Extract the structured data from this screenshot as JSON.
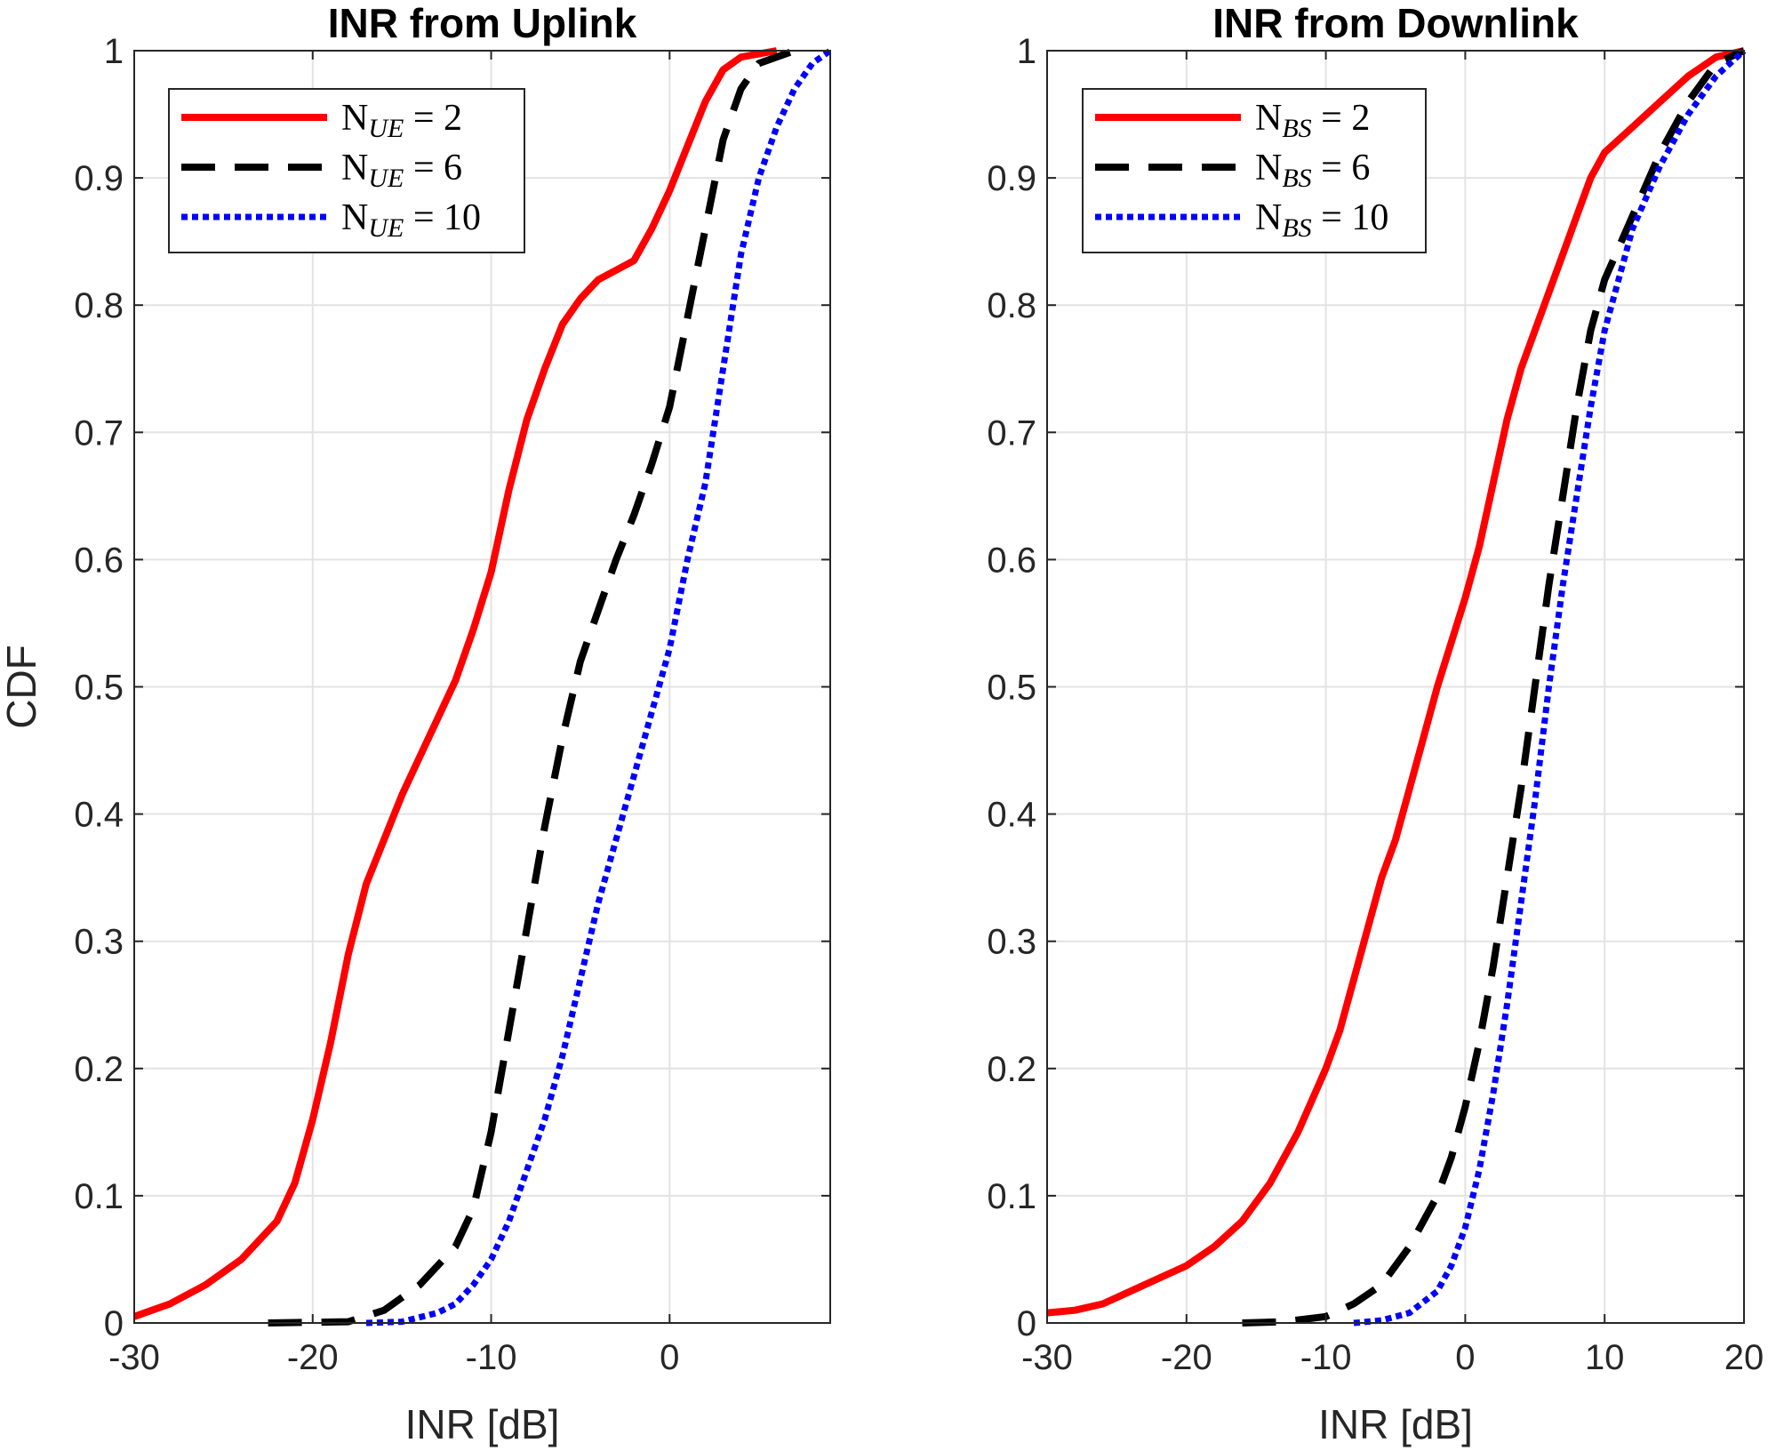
{
  "chart_data": [
    {
      "type": "line",
      "title": "INR from Uplink",
      "xlabel": "INR [dB]",
      "ylabel": "CDF",
      "xlim": [
        -30,
        9
      ],
      "ylim": [
        0,
        1
      ],
      "xticks": [
        -30,
        -20,
        -10,
        0
      ],
      "yticks": [
        0,
        0.1,
        0.2,
        0.3,
        0.4,
        0.5,
        0.6,
        0.7,
        0.8,
        0.9,
        1
      ],
      "grid": true,
      "legend_position": "top-left",
      "series": [
        {
          "name": "N_UE = 2",
          "legend_base": "N",
          "legend_sub": "UE",
          "legend_rest": " = 2",
          "color": "#ff0000",
          "style": "solid",
          "points": [
            [
              -30,
              0.005
            ],
            [
              -28,
              0.015
            ],
            [
              -26,
              0.03
            ],
            [
              -24,
              0.05
            ],
            [
              -22,
              0.08
            ],
            [
              -21,
              0.11
            ],
            [
              -20,
              0.16
            ],
            [
              -19,
              0.22
            ],
            [
              -18,
              0.29
            ],
            [
              -17,
              0.345
            ],
            [
              -16,
              0.38
            ],
            [
              -15,
              0.415
            ],
            [
              -14,
              0.445
            ],
            [
              -13,
              0.475
            ],
            [
              -12,
              0.505
            ],
            [
              -11,
              0.545
            ],
            [
              -10,
              0.59
            ],
            [
              -9,
              0.655
            ],
            [
              -8,
              0.71
            ],
            [
              -7,
              0.75
            ],
            [
              -6,
              0.785
            ],
            [
              -5,
              0.805
            ],
            [
              -4,
              0.82
            ],
            [
              -2,
              0.835
            ],
            [
              -1,
              0.86
            ],
            [
              0,
              0.89
            ],
            [
              1,
              0.925
            ],
            [
              2,
              0.96
            ],
            [
              3,
              0.985
            ],
            [
              4,
              0.995
            ],
            [
              6,
              1.0
            ]
          ]
        },
        {
          "name": "N_UE = 6",
          "legend_base": "N",
          "legend_sub": "UE",
          "legend_rest": " = 6",
          "color": "#000000",
          "style": "dashed",
          "points": [
            [
              -22.5,
              0.0
            ],
            [
              -18,
              0.001
            ],
            [
              -16,
              0.01
            ],
            [
              -14,
              0.03
            ],
            [
              -12,
              0.06
            ],
            [
              -11,
              0.09
            ],
            [
              -10,
              0.15
            ],
            [
              -9,
              0.23
            ],
            [
              -8,
              0.31
            ],
            [
              -7,
              0.39
            ],
            [
              -6,
              0.46
            ],
            [
              -5,
              0.52
            ],
            [
              -4,
              0.56
            ],
            [
              -3,
              0.6
            ],
            [
              -2,
              0.635
            ],
            [
              -1,
              0.675
            ],
            [
              0,
              0.72
            ],
            [
              1,
              0.79
            ],
            [
              2,
              0.86
            ],
            [
              3,
              0.93
            ],
            [
              4,
              0.97
            ],
            [
              5,
              0.99
            ],
            [
              7,
              1.0
            ]
          ]
        },
        {
          "name": "N_UE = 10",
          "legend_base": "N",
          "legend_sub": "UE",
          "legend_rest": " = 10",
          "color": "#0000ff",
          "style": "dotted",
          "points": [
            [
              -17,
              0.0
            ],
            [
              -15,
              0.001
            ],
            [
              -13,
              0.008
            ],
            [
              -12,
              0.015
            ],
            [
              -11,
              0.03
            ],
            [
              -10,
              0.05
            ],
            [
              -9,
              0.08
            ],
            [
              -8,
              0.12
            ],
            [
              -7,
              0.16
            ],
            [
              -6,
              0.21
            ],
            [
              -5,
              0.27
            ],
            [
              -4,
              0.33
            ],
            [
              -3,
              0.38
            ],
            [
              -2,
              0.43
            ],
            [
              -1,
              0.48
            ],
            [
              0,
              0.53
            ],
            [
              1,
              0.6
            ],
            [
              2,
              0.66
            ],
            [
              3,
              0.75
            ],
            [
              4,
              0.84
            ],
            [
              5,
              0.9
            ],
            [
              6,
              0.94
            ],
            [
              7,
              0.97
            ],
            [
              8,
              0.99
            ],
            [
              9,
              1.0
            ]
          ]
        }
      ]
    },
    {
      "type": "line",
      "title": "INR from Downlink",
      "xlabel": "INR [dB]",
      "ylabel": "",
      "xlim": [
        -30,
        20
      ],
      "ylim": [
        0,
        1
      ],
      "xticks": [
        -30,
        -20,
        -10,
        0,
        10,
        20
      ],
      "yticks": [
        0,
        0.1,
        0.2,
        0.3,
        0.4,
        0.5,
        0.6,
        0.7,
        0.8,
        0.9,
        1
      ],
      "grid": true,
      "legend_position": "top-left",
      "series": [
        {
          "name": "N_BS = 2",
          "legend_base": "N",
          "legend_sub": "BS",
          "legend_rest": " = 2",
          "color": "#ff0000",
          "style": "solid",
          "points": [
            [
              -30,
              0.008
            ],
            [
              -28,
              0.01
            ],
            [
              -26,
              0.015
            ],
            [
              -24,
              0.025
            ],
            [
              -22,
              0.035
            ],
            [
              -20,
              0.045
            ],
            [
              -18,
              0.06
            ],
            [
              -16,
              0.08
            ],
            [
              -14,
              0.11
            ],
            [
              -12,
              0.15
            ],
            [
              -10,
              0.2
            ],
            [
              -9,
              0.23
            ],
            [
              -8,
              0.27
            ],
            [
              -7,
              0.31
            ],
            [
              -6,
              0.35
            ],
            [
              -5,
              0.38
            ],
            [
              -4,
              0.42
            ],
            [
              -3,
              0.46
            ],
            [
              -2,
              0.5
            ],
            [
              -1,
              0.535
            ],
            [
              0,
              0.57
            ],
            [
              1,
              0.61
            ],
            [
              2,
              0.66
            ],
            [
              3,
              0.71
            ],
            [
              4,
              0.75
            ],
            [
              5,
              0.78
            ],
            [
              6,
              0.81
            ],
            [
              7,
              0.84
            ],
            [
              8,
              0.87
            ],
            [
              9,
              0.9
            ],
            [
              10,
              0.92
            ],
            [
              11,
              0.93
            ],
            [
              12,
              0.94
            ],
            [
              14,
              0.96
            ],
            [
              16,
              0.98
            ],
            [
              18,
              0.995
            ],
            [
              20,
              1.0
            ]
          ]
        },
        {
          "name": "N_BS = 6",
          "legend_base": "N",
          "legend_sub": "BS",
          "legend_rest": " = 6",
          "color": "#000000",
          "style": "dashed",
          "points": [
            [
              -16,
              0.0
            ],
            [
              -13,
              0.001
            ],
            [
              -10,
              0.005
            ],
            [
              -8,
              0.015
            ],
            [
              -6,
              0.03
            ],
            [
              -4,
              0.06
            ],
            [
              -2,
              0.1
            ],
            [
              -1,
              0.13
            ],
            [
              0,
              0.17
            ],
            [
              1,
              0.22
            ],
            [
              2,
              0.28
            ],
            [
              3,
              0.35
            ],
            [
              4,
              0.42
            ],
            [
              5,
              0.5
            ],
            [
              6,
              0.58
            ],
            [
              7,
              0.65
            ],
            [
              8,
              0.72
            ],
            [
              9,
              0.78
            ],
            [
              10,
              0.82
            ],
            [
              12,
              0.87
            ],
            [
              14,
              0.92
            ],
            [
              16,
              0.96
            ],
            [
              18,
              0.99
            ],
            [
              20,
              1.0
            ]
          ]
        },
        {
          "name": "N_BS = 10",
          "legend_base": "N",
          "legend_sub": "BS",
          "legend_rest": " = 10",
          "color": "#0000ff",
          "style": "dotted",
          "points": [
            [
              -8,
              0.0
            ],
            [
              -6,
              0.002
            ],
            [
              -4,
              0.008
            ],
            [
              -2,
              0.025
            ],
            [
              -1,
              0.045
            ],
            [
              0,
              0.075
            ],
            [
              1,
              0.12
            ],
            [
              2,
              0.18
            ],
            [
              3,
              0.25
            ],
            [
              4,
              0.33
            ],
            [
              5,
              0.41
            ],
            [
              6,
              0.5
            ],
            [
              7,
              0.58
            ],
            [
              8,
              0.65
            ],
            [
              9,
              0.72
            ],
            [
              10,
              0.78
            ],
            [
              11,
              0.82
            ],
            [
              12,
              0.86
            ],
            [
              14,
              0.91
            ],
            [
              16,
              0.95
            ],
            [
              18,
              0.98
            ],
            [
              20,
              1.0
            ]
          ]
        }
      ]
    }
  ]
}
